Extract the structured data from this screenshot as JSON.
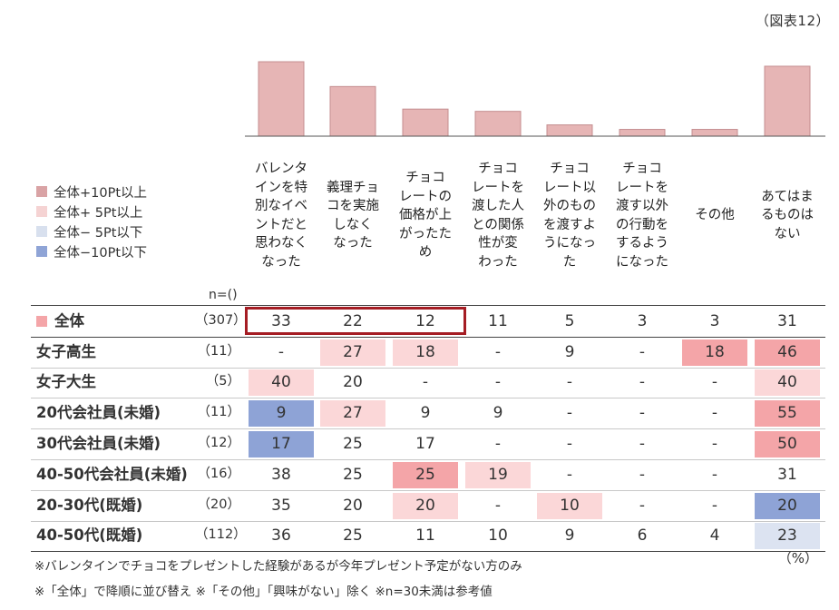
{
  "figure_label": "（図表12）",
  "legend": [
    {
      "label": "全体+10Pt以上",
      "color": "#d9a3a5"
    },
    {
      "label": "全体+ 5Pt以上",
      "color": "#f5d3d3"
    },
    {
      "label": "全体− 5Pt以下",
      "color": "#d8e0ee"
    },
    {
      "label": "全体−10Pt以下",
      "color": "#8fa4d6"
    }
  ],
  "n_header": "n=()",
  "bar_color": "#e6b5b5",
  "bar_border": "#c48d8f",
  "highlight_fills": {
    "plus10": "#f4a5a8",
    "plus5": "#fbd7d8",
    "minus5": "#dce3f1",
    "minus10": "#8ea3d6"
  },
  "highlight_border_color": "#a51d24",
  "chart_data": {
    "type": "table",
    "columns": [
      "バレンタ\nインを特\n別なイベ\nントだと\n思わなく\nなった",
      "義理チョ\nコを実施\nしなく\nなった",
      "チョコ\nレートの\n価格が上\nがったた\nめ",
      "チョコ\nレートを\n渡した人\nとの関係\n性が変\nわった",
      "チョコ\nレート以\n外のもの\nを渡すよ\nうになっ\nた",
      "チョコ\nレートを\n渡す以外\nの行動を\nするよう\nになった",
      "その他",
      "あてはま\nるものは\nない"
    ],
    "bar_values": [
      33,
      22,
      12,
      11,
      5,
      3,
      3,
      31
    ],
    "rows": [
      {
        "label": "全体",
        "n": "（307）",
        "values": [
          "33",
          "22",
          "12",
          "11",
          "5",
          "3",
          "3",
          "31"
        ],
        "levels": [
          0,
          0,
          0,
          0,
          0,
          0,
          0,
          0
        ]
      },
      {
        "label": "女子高生",
        "n": "（11）",
        "values": [
          "-",
          "27",
          "18",
          "-",
          "9",
          "-",
          "18",
          "46"
        ],
        "levels": [
          0,
          1,
          1,
          0,
          0,
          0,
          2,
          2
        ]
      },
      {
        "label": "女子大生",
        "n": "（5）",
        "values": [
          "40",
          "20",
          "-",
          "-",
          "-",
          "-",
          "-",
          "40"
        ],
        "levels": [
          1,
          0,
          0,
          0,
          0,
          0,
          0,
          1
        ]
      },
      {
        "label": "20代会社員(未婚)",
        "n": "（11）",
        "values": [
          "9",
          "27",
          "9",
          "9",
          "-",
          "-",
          "-",
          "55"
        ],
        "levels": [
          -2,
          1,
          0,
          0,
          0,
          0,
          0,
          2
        ]
      },
      {
        "label": "30代会社員(未婚)",
        "n": "（12）",
        "values": [
          "17",
          "25",
          "17",
          "-",
          "-",
          "-",
          "-",
          "50"
        ],
        "levels": [
          -2,
          0,
          0,
          0,
          0,
          0,
          0,
          2
        ]
      },
      {
        "label": "40-50代会社員(未婚)",
        "n": "（16）",
        "values": [
          "38",
          "25",
          "25",
          "19",
          "-",
          "-",
          "-",
          "31"
        ],
        "levels": [
          0,
          0,
          2,
          1,
          0,
          0,
          0,
          0
        ]
      },
      {
        "label": "20-30代(既婚)",
        "n": "（20）",
        "values": [
          "35",
          "20",
          "20",
          "-",
          "10",
          "-",
          "-",
          "20"
        ],
        "levels": [
          0,
          0,
          1,
          0,
          1,
          0,
          0,
          -2
        ]
      },
      {
        "label": "40-50代(既婚)",
        "n": "（112）",
        "values": [
          "36",
          "25",
          "11",
          "10",
          "9",
          "6",
          "4",
          "23"
        ],
        "levels": [
          0,
          0,
          0,
          0,
          0,
          0,
          0,
          -1
        ]
      }
    ]
  },
  "unit": "（%）",
  "notes": [
    "※バレンタインでチョコをプレゼントした経験があるが今年プレゼント予定がない方のみ",
    "※「全体」で降順に並び替え ※「その他」「興味がない」除く ※n=30未満は参考値"
  ]
}
